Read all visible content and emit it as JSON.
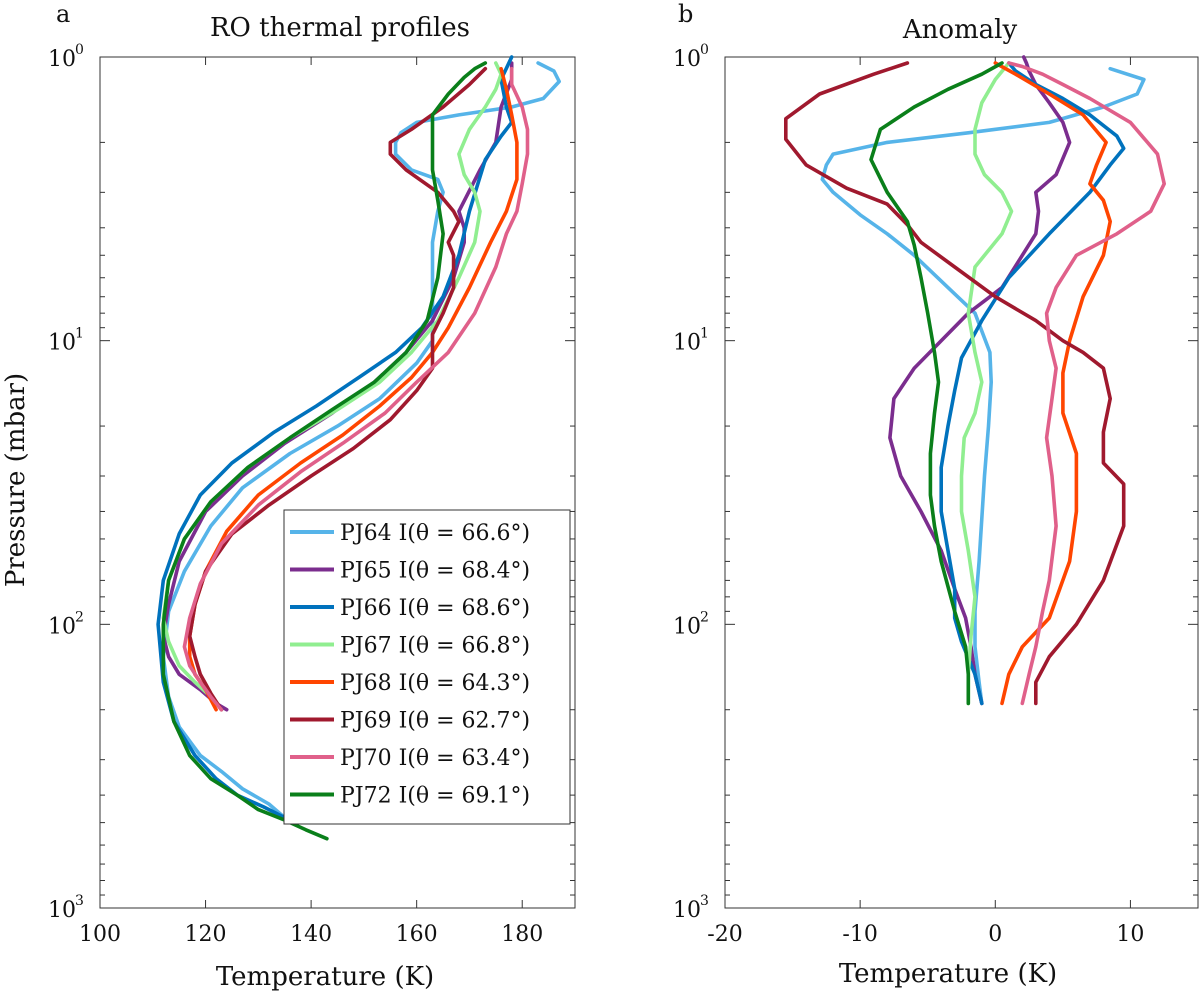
{
  "chart_data": [
    {
      "panel": "a",
      "type": "line",
      "title": "RO thermal profiles",
      "xlabel": "Temperature (K)",
      "ylabel": "Pressure (mbar)",
      "xlim": [
        100,
        190
      ],
      "xticks": [
        100,
        120,
        140,
        160,
        180
      ],
      "ylim": [
        1,
        1000
      ],
      "yscale": "log",
      "ydir": "reverse",
      "yticks": [
        1,
        10,
        100,
        1000
      ],
      "ytick_labels": [
        {
          "base": "10",
          "exp": "0"
        },
        {
          "base": "10",
          "exp": "1"
        },
        {
          "base": "10",
          "exp": "2"
        },
        {
          "base": "10",
          "exp": "3"
        }
      ],
      "legend_position": "lower-right",
      "series": [
        {
          "name": "PJ64",
          "label": "PJ64 I(θ = 66.6°)",
          "color": "#56b4e9",
          "x": [
            135,
            132,
            127,
            123,
            119,
            115,
            113,
            112,
            113,
            116,
            121,
            127,
            136,
            145,
            153,
            160,
            163,
            163,
            163,
            163,
            164,
            165,
            164,
            159,
            156,
            156,
            157,
            160,
            168,
            178,
            184,
            187,
            186,
            183
          ],
          "y": [
            480,
            430,
            380,
            330,
            290,
            230,
            180,
            130,
            90,
            65,
            45,
            33,
            25,
            20,
            16,
            12,
            10,
            8,
            6,
            4.5,
            3.5,
            3.0,
            2.7,
            2.5,
            2.2,
            2.0,
            1.85,
            1.7,
            1.6,
            1.5,
            1.4,
            1.22,
            1.12,
            1.05
          ]
        },
        {
          "name": "PJ65",
          "label": "PJ65 I(θ = 68.4°)",
          "color": "#7b2d8e",
          "x": [
            124,
            122,
            119,
            115,
            113,
            112,
            113,
            115,
            120,
            127,
            135,
            144,
            152,
            158,
            163,
            167,
            169,
            169,
            168,
            172,
            175,
            176,
            178,
            178
          ],
          "y": [
            200,
            190,
            170,
            150,
            130,
            110,
            85,
            60,
            40,
            30,
            23,
            18,
            14,
            11,
            8.5,
            6,
            4.5,
            4.0,
            3.5,
            2.5,
            2.0,
            1.5,
            1.2,
            1.05
          ]
        },
        {
          "name": "PJ66",
          "label": "PJ66 I(θ = 68.6°)",
          "color": "#0072bd",
          "x": [
            135,
            131,
            126,
            122,
            118,
            114,
            112,
            111,
            112,
            115,
            119,
            125,
            133,
            141,
            149,
            156,
            161,
            165,
            168,
            170,
            173,
            176,
            178,
            177,
            176,
            178
          ],
          "y": [
            480,
            440,
            400,
            350,
            290,
            220,
            160,
            100,
            70,
            48,
            35,
            27,
            21,
            17,
            13.5,
            11,
            9,
            7,
            5,
            3.5,
            2.3,
            1.9,
            1.7,
            1.5,
            1.2,
            1.0
          ]
        },
        {
          "name": "PJ67",
          "label": "PJ67 I(θ = 66.8°)",
          "color": "#90ee90",
          "x": [
            123,
            121,
            118,
            115,
            113,
            112,
            113,
            116,
            121,
            128,
            136,
            145,
            153,
            159,
            164,
            168,
            171,
            172,
            171,
            169,
            168,
            170,
            173,
            175,
            176,
            175
          ],
          "y": [
            200,
            180,
            160,
            140,
            115,
            95,
            70,
            50,
            37,
            28,
            22,
            17.5,
            14,
            11,
            8.5,
            6,
            4.5,
            3.5,
            3.0,
            2.6,
            2.2,
            1.8,
            1.5,
            1.3,
            1.15,
            1.05
          ]
        },
        {
          "name": "PJ68",
          "label": "PJ68 I(θ = 64.3°)",
          "color": "#ff4500",
          "x": [
            122,
            120,
            118,
            117,
            117,
            118,
            120,
            124,
            130,
            138,
            146,
            153,
            159,
            163,
            166,
            170,
            174,
            177,
            179,
            179,
            178,
            177,
            176
          ],
          "y": [
            200,
            170,
            150,
            130,
            110,
            85,
            65,
            47,
            35,
            27,
            21.5,
            17,
            13.5,
            11,
            9,
            6.5,
            4.5,
            3.5,
            2.7,
            2.0,
            1.6,
            1.3,
            1.1
          ]
        },
        {
          "name": "PJ69",
          "label": "PJ69 I(θ = 62.7°)",
          "color": "#a0192e",
          "x": [
            123,
            121,
            119,
            118,
            117,
            118,
            120,
            125,
            132,
            140,
            148,
            155,
            160,
            163,
            163,
            163,
            165,
            167,
            167,
            166,
            168,
            167,
            164,
            158,
            155,
            155,
            159,
            165,
            170,
            173
          ],
          "y": [
            200,
            175,
            150,
            130,
            110,
            85,
            65,
            48,
            38,
            30,
            24,
            19,
            15,
            12.5,
            11,
            9.5,
            8,
            6.5,
            5.0,
            4.5,
            3.8,
            3.5,
            3.0,
            2.5,
            2.2,
            2.0,
            1.8,
            1.5,
            1.25,
            1.1
          ]
        },
        {
          "name": "PJ70",
          "label": "PJ70 I(θ = 63.4°)",
          "color": "#e0608a",
          "x": [
            123,
            121,
            119,
            117,
            116,
            117,
            119,
            123,
            130,
            138,
            146,
            154,
            160,
            166,
            171,
            175,
            177,
            179,
            180,
            181,
            181,
            180,
            178,
            178
          ],
          "y": [
            200,
            180,
            160,
            140,
            120,
            95,
            72,
            52,
            38,
            29,
            23,
            18,
            14,
            11,
            8,
            5.5,
            4.2,
            3.5,
            2.8,
            2.2,
            1.8,
            1.5,
            1.25,
            1.1
          ]
        },
        {
          "name": "PJ72",
          "label": "PJ72 I(θ = 69.1°)",
          "color": "#0a7f1a",
          "x": [
            143,
            139,
            135,
            130,
            126,
            121,
            117,
            114,
            112,
            112,
            113,
            116,
            121,
            128,
            136,
            144,
            152,
            158,
            162,
            164,
            165,
            164,
            163,
            163,
            163,
            166,
            169,
            171,
            173
          ],
          "y": [
            570,
            530,
            490,
            450,
            400,
            350,
            290,
            220,
            150,
            100,
            70,
            50,
            37,
            28,
            22,
            17.5,
            14,
            11,
            8.5,
            6,
            4.2,
            3.2,
            2.5,
            2.0,
            1.6,
            1.35,
            1.18,
            1.1,
            1.05
          ]
        }
      ]
    },
    {
      "panel": "b",
      "type": "line",
      "title": "Anomaly",
      "xlabel": "Temperature (K)",
      "ylabel": "",
      "xlim": [
        -20,
        15
      ],
      "xticks": [
        -20,
        -10,
        0,
        10
      ],
      "ylim": [
        1,
        1000
      ],
      "yscale": "log",
      "ydir": "reverse",
      "yticks": [
        1,
        10,
        100,
        1000
      ],
      "ytick_labels": [
        {
          "base": "10",
          "exp": "0"
        },
        {
          "base": "10",
          "exp": "1"
        },
        {
          "base": "10",
          "exp": "2"
        },
        {
          "base": "10",
          "exp": "3"
        }
      ],
      "series": [
        {
          "name": "PJ64",
          "color": "#56b4e9",
          "x": [
            -1,
            -1.2,
            -1.5,
            -1.5,
            -1.2,
            -0.8,
            -0.5,
            -0.3,
            -0.4,
            -1.5,
            -3.5,
            -6,
            -8,
            -10,
            -12,
            -12.8,
            -12.5,
            -12,
            -8,
            -2,
            4,
            8,
            10.5,
            11,
            8.5
          ],
          "y": [
            190,
            160,
            120,
            90,
            60,
            30,
            20,
            14,
            11,
            8,
            6.5,
            5.0,
            4.2,
            3.6,
            3.0,
            2.7,
            2.4,
            2.2,
            2.0,
            1.85,
            1.7,
            1.5,
            1.35,
            1.2,
            1.1
          ]
        },
        {
          "name": "PJ65",
          "color": "#7b2d8e",
          "x": [
            -1,
            -1.5,
            -1.8,
            -2.2,
            -3,
            -4,
            -5.5,
            -7,
            -7.8,
            -7.5,
            -6,
            -4,
            -2,
            0.5,
            2,
            3,
            3.2,
            3,
            4.5,
            5.5,
            5.0,
            4,
            3,
            2.5,
            2.3,
            2.1
          ],
          "y": [
            190,
            150,
            120,
            95,
            75,
            55,
            40,
            30,
            22,
            16,
            12.5,
            10,
            8,
            6.5,
            5.0,
            4.2,
            3.5,
            3.0,
            2.6,
            2.0,
            1.7,
            1.45,
            1.25,
            1.12,
            1.05,
            1.0
          ]
        },
        {
          "name": "PJ66",
          "color": "#0072bd",
          "x": [
            -1,
            -1.5,
            -2.5,
            -3,
            -3,
            -3.5,
            -4,
            -4,
            -3.5,
            -3,
            -2.5,
            -1,
            1,
            4,
            7,
            8.5,
            9.5,
            9.0,
            7,
            5,
            3,
            1.5,
            1
          ],
          "y": [
            190,
            150,
            115,
            95,
            75,
            55,
            40,
            28,
            20,
            15,
            11.5,
            8.5,
            6,
            4.2,
            3.0,
            2.4,
            2.1,
            1.9,
            1.6,
            1.4,
            1.25,
            1.12,
            1.05
          ]
        },
        {
          "name": "PJ67",
          "color": "#90ee90",
          "x": [
            -2,
            -2,
            -1.8,
            -1.5,
            -2,
            -2.5,
            -2.5,
            -2.3,
            -1.5,
            -1,
            -1.5,
            -2,
            -1.5,
            0.5,
            1.2,
            0.5,
            -0.8,
            -1.5,
            -1.5,
            -1,
            0,
            1
          ],
          "y": [
            190,
            150,
            110,
            80,
            55,
            40,
            30,
            22,
            18,
            14,
            11,
            8,
            5.5,
            4.2,
            3.5,
            3.0,
            2.6,
            2.2,
            1.8,
            1.45,
            1.2,
            1.05
          ]
        },
        {
          "name": "PJ68",
          "color": "#ff4500",
          "x": [
            0.5,
            1,
            2,
            4,
            5.5,
            6,
            6,
            5,
            5,
            5.5,
            6.5,
            8,
            8.5,
            8,
            7,
            7.5,
            8.2,
            6.5,
            4,
            1.5,
            0
          ],
          "y": [
            190,
            150,
            120,
            95,
            60,
            40,
            25,
            18,
            13,
            10,
            7,
            5,
            3.8,
            3.2,
            2.8,
            2.4,
            2.0,
            1.6,
            1.35,
            1.15,
            1.05
          ]
        },
        {
          "name": "PJ69",
          "color": "#a0192e",
          "x": [
            3,
            3,
            4,
            6,
            8,
            9.5,
            9.5,
            8,
            8,
            8.5,
            8,
            6.5,
            5,
            3,
            0,
            -3,
            -5.5,
            -6.5,
            -8,
            -11,
            -14,
            -15.5,
            -15.5,
            -13,
            -9,
            -6.5
          ],
          "y": [
            190,
            160,
            130,
            100,
            70,
            45,
            32,
            27,
            21,
            16,
            12.5,
            11,
            10,
            8.5,
            7,
            5.5,
            4.5,
            3.9,
            3.3,
            2.9,
            2.4,
            1.95,
            1.65,
            1.35,
            1.15,
            1.05
          ]
        },
        {
          "name": "PJ70",
          "color": "#e0608a",
          "x": [
            2,
            2.5,
            3,
            3.5,
            4,
            4.5,
            4.2,
            3.8,
            4.2,
            4.5,
            4,
            3.8,
            4.5,
            6,
            9,
            11.5,
            12.5,
            12,
            10,
            7,
            5,
            3.5,
            2,
            1
          ],
          "y": [
            190,
            150,
            120,
            90,
            70,
            45,
            30,
            22,
            16,
            12.5,
            10,
            8,
            6.5,
            5.0,
            4.2,
            3.5,
            2.8,
            2.2,
            1.7,
            1.4,
            1.25,
            1.15,
            1.08,
            1.05
          ]
        },
        {
          "name": "PJ72",
          "color": "#0a7f1a",
          "x": [
            -2,
            -2,
            -2.2,
            -3,
            -4,
            -4.5,
            -4.8,
            -4.8,
            -4.5,
            -4.2,
            -4.5,
            -5,
            -5.5,
            -6,
            -6.5,
            -8,
            -9.2,
            -8.5,
            -6,
            -3.5,
            -1,
            0.5
          ],
          "y": [
            190,
            150,
            120,
            90,
            60,
            45,
            35,
            25,
            18,
            14,
            11,
            8,
            6,
            4.6,
            3.8,
            3.0,
            2.3,
            1.8,
            1.5,
            1.3,
            1.15,
            1.05
          ]
        }
      ]
    }
  ]
}
